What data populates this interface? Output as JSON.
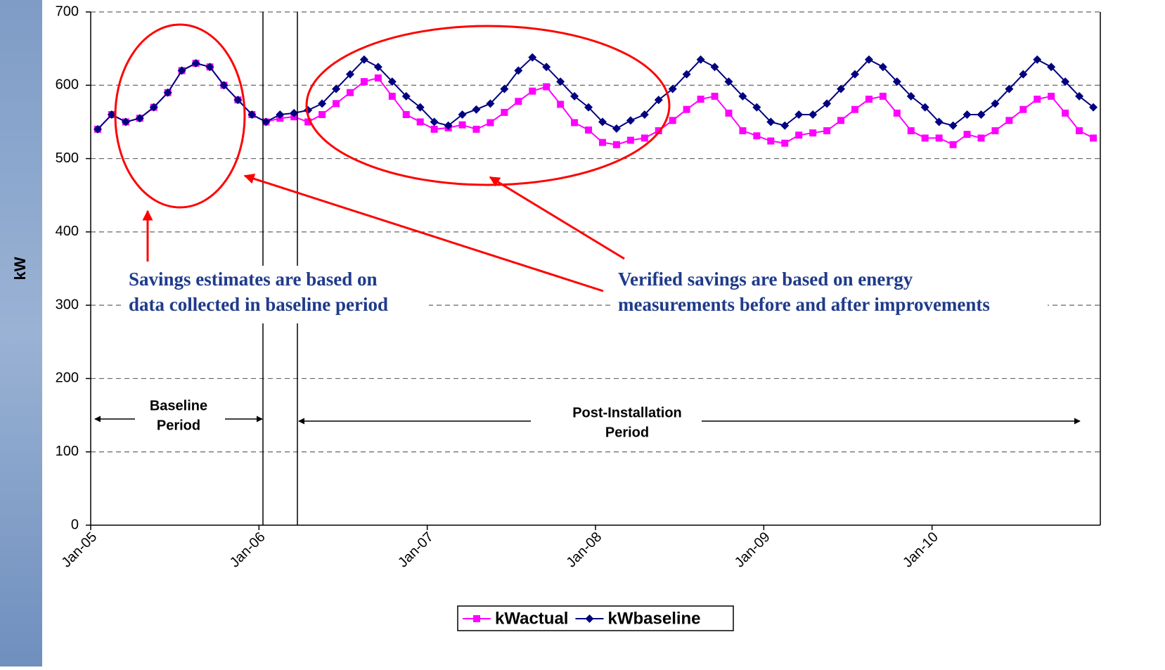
{
  "chart_data": {
    "type": "line",
    "y_label": "kW",
    "categories": [
      "Jan-05",
      null,
      null,
      null,
      null,
      null,
      null,
      null,
      null,
      null,
      null,
      null,
      "Jan-06",
      null,
      null,
      null,
      null,
      null,
      null,
      null,
      null,
      null,
      null,
      null,
      "Jan-07",
      null,
      null,
      null,
      null,
      null,
      null,
      null,
      null,
      null,
      null,
      null,
      "Jan-08",
      null,
      null,
      null,
      null,
      null,
      null,
      null,
      null,
      null,
      null,
      null,
      "Jan-09",
      null,
      null,
      null,
      null,
      null,
      null,
      null,
      null,
      null,
      null,
      null,
      "Jan-10",
      null,
      null,
      null,
      null,
      null,
      null,
      null,
      null,
      null,
      null,
      null
    ],
    "series": [
      {
        "name": "kWactual",
        "color": "#ff00ff",
        "marker": "square",
        "values": [
          540,
          560,
          550,
          555,
          570,
          590,
          620,
          630,
          625,
          600,
          580,
          560,
          550,
          555,
          557,
          550,
          560,
          575,
          590,
          605,
          610,
          585,
          560,
          550,
          540,
          542,
          546,
          540,
          549,
          563,
          578,
          592,
          598,
          574,
          549,
          539,
          522,
          519,
          525,
          528,
          538,
          552,
          567,
          581,
          585,
          562,
          538,
          531,
          524,
          521,
          532,
          535,
          538,
          552,
          567,
          581,
          585,
          562,
          538,
          528,
          528,
          519,
          533,
          528,
          538,
          552,
          567,
          581,
          585,
          562,
          538,
          528
        ]
      },
      {
        "name": "kWbaseline",
        "color": "#000080",
        "marker": "diamond",
        "values": [
          540,
          560,
          550,
          555,
          570,
          590,
          620,
          630,
          625,
          600,
          580,
          560,
          550,
          560,
          562,
          566,
          575,
          595,
          615,
          635,
          625,
          605,
          585,
          570,
          550,
          545,
          560,
          567,
          575,
          595,
          620,
          638,
          625,
          605,
          585,
          570,
          550,
          541,
          552,
          560,
          580,
          595,
          615,
          635,
          625,
          605,
          585,
          570,
          550,
          545,
          560,
          560,
          575,
          595,
          615,
          635,
          625,
          605,
          585,
          570,
          550,
          545,
          560,
          560,
          575,
          595,
          615,
          635,
          625,
          605,
          585,
          570
        ]
      }
    ],
    "ylim": [
      0,
      700
    ],
    "yticks": [
      0,
      100,
      200,
      300,
      400,
      500,
      600,
      700
    ],
    "grid": true,
    "legend": "bottom",
    "annotations": {
      "baseline_note": [
        "Savings estimates are based on",
        "data collected in baseline period"
      ],
      "verified_note": [
        "Verified savings are based on energy",
        "measurements before and after improvements"
      ],
      "baseline_period": [
        "Baseline",
        "Period"
      ],
      "post_period": [
        "Post-Installation",
        "Period"
      ]
    }
  }
}
